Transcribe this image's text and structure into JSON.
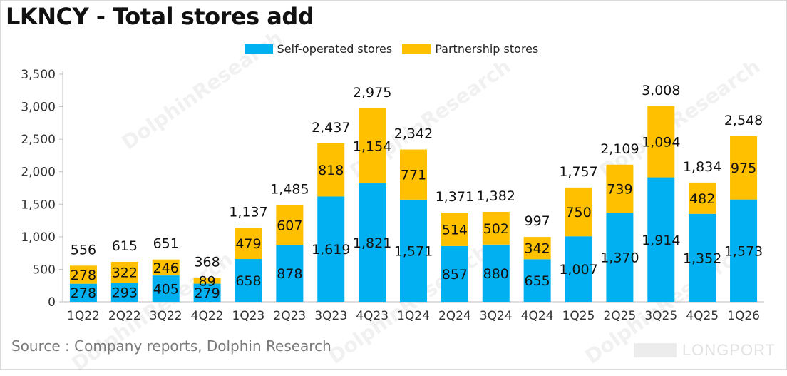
{
  "title": "LKNCY - Total stores add",
  "source": "Source : Company reports, Dolphin Research",
  "watermark": "DolphinResearch",
  "brand": "LONGPORT",
  "colors": {
    "self": "#00b0f0",
    "partner": "#ffc000",
    "axis": "#bfbfbf",
    "text": "#111111"
  },
  "chart_data": {
    "type": "bar",
    "stacked": true,
    "categories": [
      "1Q22",
      "2Q22",
      "3Q22",
      "4Q22",
      "1Q23",
      "2Q23",
      "3Q23",
      "4Q23",
      "1Q24",
      "2Q24",
      "3Q24",
      "4Q24",
      "1Q25",
      "2Q25",
      "3Q25",
      "4Q25",
      "1Q26"
    ],
    "series": [
      {
        "name": "Self-operated stores",
        "values": [
          278,
          293,
          405,
          279,
          658,
          878,
          1619,
          1821,
          1571,
          857,
          880,
          655,
          1007,
          1370,
          1914,
          1352,
          1573
        ],
        "labels": [
          "278",
          "293",
          "405",
          "279",
          "658",
          "878",
          "1,619",
          "1,821",
          "1,571",
          "857",
          "880",
          "655",
          "1,007",
          "1,370",
          "1,914",
          "1,352",
          "1,573"
        ]
      },
      {
        "name": "Partnership stores",
        "values": [
          278,
          322,
          246,
          89,
          479,
          607,
          818,
          1154,
          771,
          514,
          502,
          342,
          750,
          739,
          1094,
          482,
          975
        ],
        "labels": [
          "278",
          "322",
          "246",
          "89",
          "479",
          "607",
          "818",
          "1,154",
          "771",
          "514",
          "502",
          "342",
          "750",
          "739",
          "1,094",
          "482",
          "975"
        ]
      }
    ],
    "totals": [
      556,
      615,
      651,
      368,
      1137,
      1485,
      2437,
      2975,
      2342,
      1371,
      1382,
      997,
      1757,
      2109,
      3008,
      1834,
      2548
    ],
    "total_labels": [
      "556",
      "615",
      "651",
      "368",
      "1,137",
      "1,485",
      "2,437",
      "2,975",
      "2,342",
      "1,371",
      "1,382",
      "997",
      "1,757",
      "2,109",
      "3,008",
      "1,834",
      "2,548"
    ],
    "ylim": [
      0,
      3500
    ],
    "yticks": [
      0,
      500,
      1000,
      1500,
      2000,
      2500,
      3000,
      3500
    ],
    "ytick_labels": [
      "0",
      "500",
      "1,000",
      "1,500",
      "2,000",
      "2,500",
      "3,000",
      "3,500"
    ],
    "legend_position": "top-center"
  }
}
